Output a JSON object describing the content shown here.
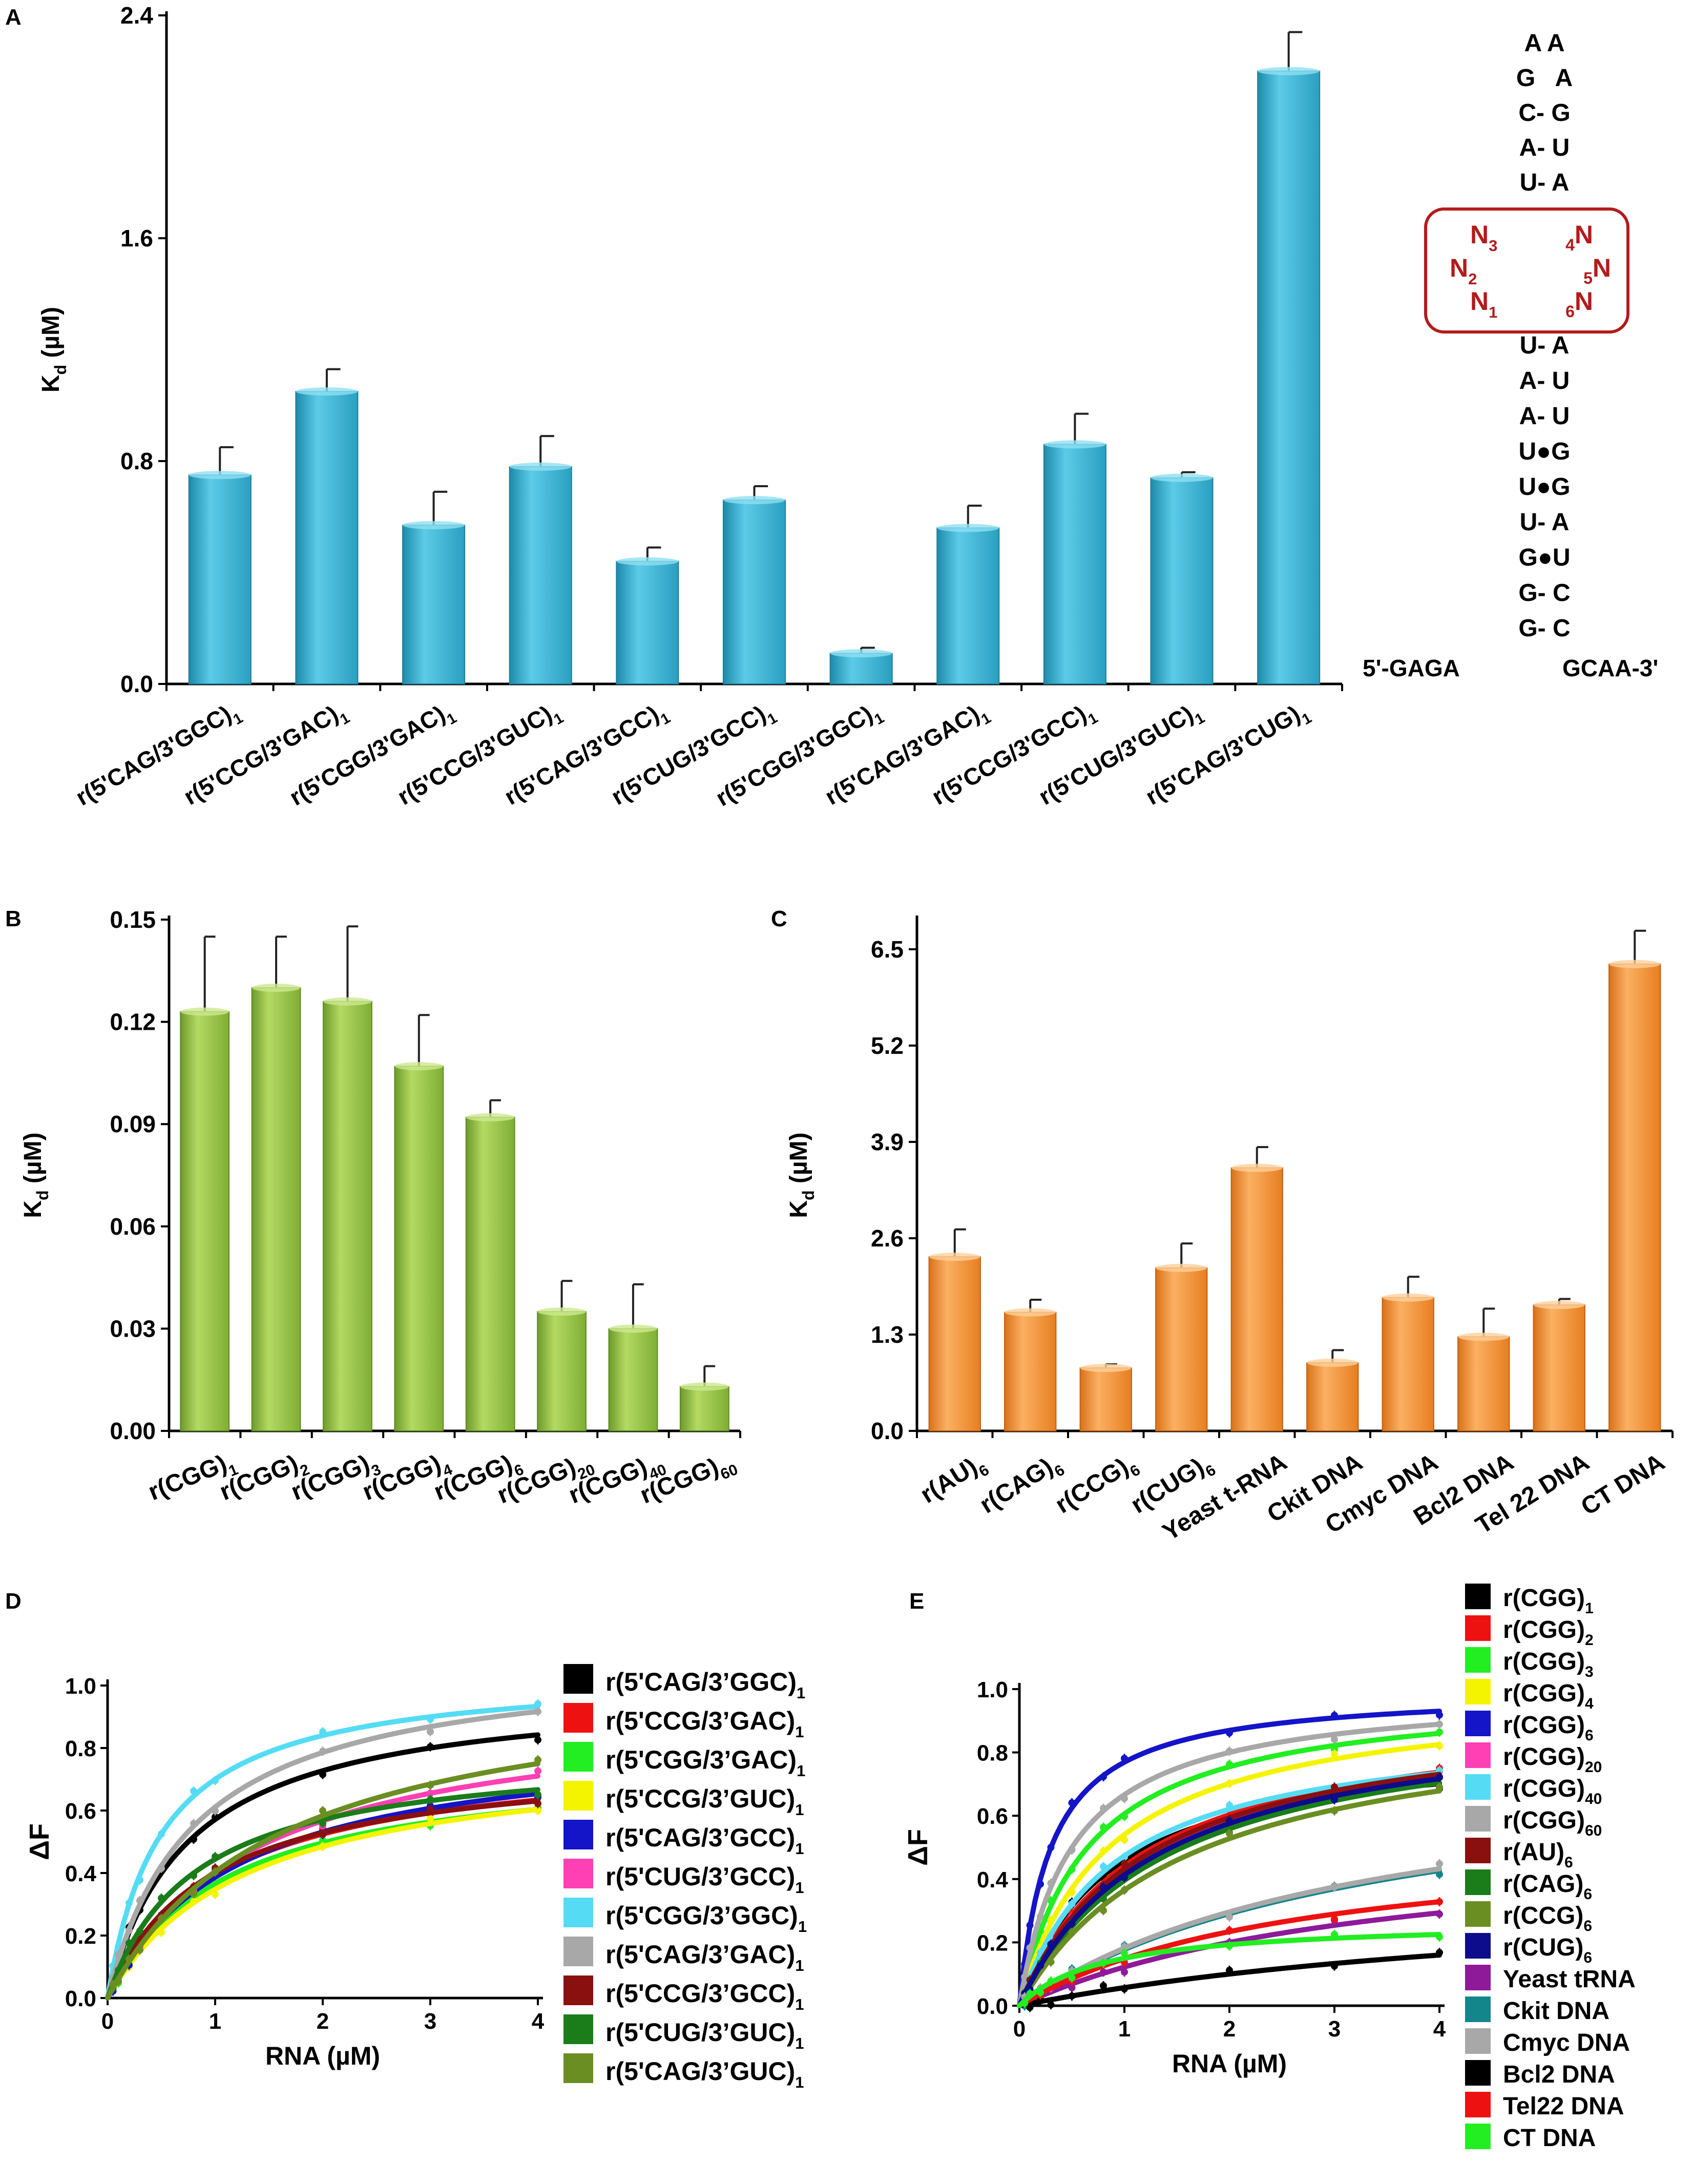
{
  "colors": {
    "panel_a": "#3ab6d6",
    "panel_b": "#8fbf3c",
    "panel_c": "#f08c2a",
    "hairpin_box": "#b31b1b",
    "axis": "#000000"
  },
  "chart_data": [
    {
      "id": "A",
      "label": "A",
      "type": "bar",
      "ylabel": "K",
      "ylabel_sub": "d",
      "ylabel_unit": "(µM)",
      "ylim": [
        0,
        2.4
      ],
      "yticks": [
        "0.0",
        "0.8",
        "1.6",
        "2.4"
      ],
      "categories": [
        {
          "main": "r(5'CAG/3'GGC)",
          "sub": "1"
        },
        {
          "main": "r(5'CCG/3'GAC)",
          "sub": "1"
        },
        {
          "main": "r(5'CGG/3'GAC)",
          "sub": "1"
        },
        {
          "main": "r(5'CCG/3'GUC)",
          "sub": "1"
        },
        {
          "main": "r(5'CAG/3'GCC)",
          "sub": "1"
        },
        {
          "main": "r(5'CUG/3'GCC)",
          "sub": "1"
        },
        {
          "main": "r(5'CGG/3'GGC)",
          "sub": "1"
        },
        {
          "main": "r(5'CAG/3'GAC)",
          "sub": "1"
        },
        {
          "main": "r(5'CCG/3'GCC)",
          "sub": "1"
        },
        {
          "main": "r(5'CUG/3'GUC)",
          "sub": "1"
        },
        {
          "main": "r(5'CAG/3'CUG)",
          "sub": "1"
        }
      ],
      "values": [
        0.75,
        1.05,
        0.57,
        0.78,
        0.44,
        0.66,
        0.11,
        0.56,
        0.86,
        0.74,
        2.2
      ],
      "errors": [
        0.1,
        0.08,
        0.12,
        0.11,
        0.05,
        0.05,
        0.02,
        0.08,
        0.11,
        0.02,
        0.14
      ]
    },
    {
      "id": "B",
      "label": "B",
      "type": "bar",
      "ylabel": "K",
      "ylabel_sub": "d",
      "ylabel_unit": "(µM)",
      "ylim": [
        0,
        0.15
      ],
      "yticks": [
        "0.00",
        "0.03",
        "0.06",
        "0.09",
        "0.12",
        "0.15"
      ],
      "categories": [
        {
          "main": "r(CGG)",
          "sub": "1"
        },
        {
          "main": "r(CGG)",
          "sub": "2"
        },
        {
          "main": "r(CGG)",
          "sub": "3"
        },
        {
          "main": "r(CGG)",
          "sub": "4"
        },
        {
          "main": "r(CGG)",
          "sub": "6"
        },
        {
          "main": "r(CGG)",
          "sub": "20"
        },
        {
          "main": "r(CGG)",
          "sub": "40"
        },
        {
          "main": "r(CGG)",
          "sub": "60"
        }
      ],
      "values": [
        0.123,
        0.13,
        0.126,
        0.107,
        0.092,
        0.035,
        0.03,
        0.013
      ],
      "errors": [
        0.022,
        0.015,
        0.022,
        0.015,
        0.005,
        0.009,
        0.013,
        0.006
      ]
    },
    {
      "id": "C",
      "label": "C",
      "type": "bar",
      "ylabel": "K",
      "ylabel_sub": "d",
      "ylabel_unit": "(µM)",
      "ylim": [
        0,
        6.9
      ],
      "yticks": [
        "0.0",
        "1.3",
        "2.6",
        "3.9",
        "5.2",
        "6.5"
      ],
      "categories": [
        {
          "main": "r(AU)",
          "sub": "6"
        },
        {
          "main": "r(CAG)",
          "sub": "6"
        },
        {
          "main": "r(CCG)",
          "sub": "6"
        },
        {
          "main": "r(CUG)",
          "sub": "6"
        },
        {
          "main": "Yeast t-RNA",
          "sub": ""
        },
        {
          "main": "Ckit DNA",
          "sub": ""
        },
        {
          "main": "Cmyc DNA",
          "sub": ""
        },
        {
          "main": "Bcl2 DNA",
          "sub": ""
        },
        {
          "main": "Tel 22 DNA",
          "sub": ""
        },
        {
          "main": "CT DNA",
          "sub": ""
        }
      ],
      "values": [
        2.35,
        1.6,
        0.85,
        2.2,
        3.55,
        0.92,
        1.8,
        1.27,
        1.7,
        6.3
      ],
      "errors": [
        0.37,
        0.17,
        0.05,
        0.33,
        0.28,
        0.17,
        0.28,
        0.38,
        0.08,
        0.45
      ]
    },
    {
      "id": "D",
      "label": "D",
      "type": "line",
      "ylabel": "ΔF",
      "xlabel": "RNA (µM)",
      "xlim": [
        0,
        4
      ],
      "ylim": [
        0,
        1.0
      ],
      "xticks": [
        "0",
        "1",
        "2",
        "3",
        "4"
      ],
      "yticks": [
        "0.0",
        "0.2",
        "0.4",
        "0.6",
        "0.8",
        "1.0"
      ],
      "series": [
        {
          "main": "r(5'CAG/3’GGC)",
          "sub": "1",
          "color": "#000000",
          "bmax": 1.0,
          "kd": 0.75
        },
        {
          "main": "r(5'CCG/3’GAC)",
          "sub": "1",
          "color": "#ee1111",
          "bmax": 0.8,
          "kd": 1.05
        },
        {
          "main": "r(5'CGG/3’GAC)",
          "sub": "1",
          "color": "#22ee22",
          "bmax": 0.77,
          "kd": 1.1
        },
        {
          "main": "r(5'CCG/3’GUC)",
          "sub": "1",
          "color": "#f4f400",
          "bmax": 0.8,
          "kd": 1.3
        },
        {
          "main": "r(5'CAG/3’GCC)",
          "sub": "1",
          "color": "#1414c8",
          "bmax": 0.85,
          "kd": 1.2
        },
        {
          "main": "r(5'CUG/3’GCC)",
          "sub": "1",
          "color": "#ff3fb4",
          "bmax": 0.95,
          "kd": 1.35
        },
        {
          "main": "r(5'CGG/3’GGC)",
          "sub": "1",
          "color": "#55dcf4",
          "bmax": 1.05,
          "kd": 0.5
        },
        {
          "main": "r(5'CAG/3’GAC)",
          "sub": "1",
          "color": "#a8a8a8",
          "bmax": 1.1,
          "kd": 0.8
        },
        {
          "main": "r(5'CCG/3’GCC)",
          "sub": "1",
          "color": "#8a1010",
          "bmax": 0.78,
          "kd": 0.95
        },
        {
          "main": "r(5'CUG/3’GUC)",
          "sub": "1",
          "color": "#1a7d1a",
          "bmax": 0.8,
          "kd": 0.8
        },
        {
          "main": "r(5'CAG/3’GUC)",
          "sub": "1",
          "color": "#6b8e23",
          "bmax": 1.05,
          "kd": 1.6
        }
      ]
    },
    {
      "id": "E",
      "label": "E",
      "type": "line",
      "ylabel": "ΔF",
      "xlabel": "RNA (µM)",
      "xlim": [
        0,
        4
      ],
      "ylim": [
        0,
        1.0
      ],
      "xticks": [
        "0",
        "1",
        "2",
        "3",
        "4"
      ],
      "yticks": [
        "0.0",
        "0.2",
        "0.4",
        "0.6",
        "0.8",
        "1.0"
      ],
      "series": [
        {
          "main": "r(CGG)",
          "sub": "1",
          "color": "#000000",
          "bmax": 0.85,
          "kd": 0.85
        },
        {
          "main": "r(CGG)",
          "sub": "2",
          "color": "#ee1111",
          "bmax": 0.95,
          "kd": 1.15
        },
        {
          "main": "r(CGG)",
          "sub": "3",
          "color": "#22ee22",
          "bmax": 1.0,
          "kd": 0.65
        },
        {
          "main": "r(CGG)",
          "sub": "4",
          "color": "#f4f400",
          "bmax": 1.0,
          "kd": 0.85
        },
        {
          "main": "r(CGG)",
          "sub": "6",
          "color": "#1414c8",
          "bmax": 1.0,
          "kd": 0.3
        },
        {
          "main": "r(CGG)",
          "sub": "20",
          "color": "#ff3fb4",
          "bmax": 0.95,
          "kd": 1.25
        },
        {
          "main": "r(CGG)",
          "sub": "40",
          "color": "#55dcf4",
          "bmax": 0.9,
          "kd": 0.9
        },
        {
          "main": "r(CGG)",
          "sub": "60",
          "color": "#a8a8a8",
          "bmax": 1.0,
          "kd": 0.5
        },
        {
          "main": "r(AU)",
          "sub": "6",
          "color": "#8a1010",
          "bmax": 0.95,
          "kd": 1.2
        },
        {
          "main": "r(CAG)",
          "sub": "6",
          "color": "#1a7d1a",
          "bmax": 0.95,
          "kd": 1.4
        },
        {
          "main": "r(CCG)",
          "sub": "6",
          "color": "#6b8e23",
          "bmax": 0.95,
          "kd": 1.6
        },
        {
          "main": "r(CUG)",
          "sub": "6",
          "color": "#0c0c8c",
          "bmax": 0.95,
          "kd": 1.3
        },
        {
          "main": "Yeast tRNA",
          "sub": "",
          "color": "#8e1a9a",
          "bmax": 0.55,
          "kd": 3.5
        },
        {
          "main": "Ckit DNA",
          "sub": "",
          "color": "#13868c",
          "bmax": 0.8,
          "kd": 3.5
        },
        {
          "main": "Cmyc DNA",
          "sub": "",
          "color": "#a8a8a8",
          "bmax": 0.8,
          "kd": 3.4
        },
        {
          "main": "Bcl2 DNA",
          "sub": "",
          "color": "#000000",
          "bmax": 0.4,
          "kd": 6.0
        },
        {
          "main": "Tel22 DNA",
          "sub": "",
          "color": "#ee1111",
          "bmax": 0.55,
          "kd": 2.7
        },
        {
          "main": "CT DNA",
          "sub": "",
          "color": "#22ee22",
          "bmax": 0.27,
          "kd": 0.8
        }
      ]
    }
  ],
  "hairpin": {
    "lines": [
      "A A",
      "G   A",
      "C- G",
      "A- U",
      "U- A",
      "U- A",
      "A- U",
      "A- U",
      "U●G",
      "U●G",
      "U- A",
      "G●U",
      "G- C",
      "G- C"
    ],
    "five_prime": "5'-GAGA",
    "three_prime": "GCAA-3'",
    "box_left": [
      {
        "main": "N",
        "sub": "3"
      },
      {
        "main": "N",
        "sub": "2"
      },
      {
        "main": "N",
        "sub": "1"
      }
    ],
    "box_right": [
      {
        "sub": "4",
        "main": "N"
      },
      {
        "sub": "5",
        "main": "N"
      },
      {
        "sub": "6",
        "main": "N"
      }
    ]
  }
}
